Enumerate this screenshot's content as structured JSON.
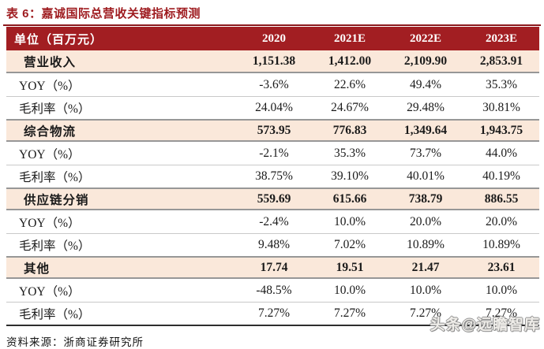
{
  "title": "表 6：嘉诚国际总营收关键指标预测",
  "colors": {
    "header_bg": "#A21E22",
    "section_row_bg": "#FAE8DA",
    "title_red": "#9E1B1F",
    "rule_red": "#8C181C"
  },
  "table": {
    "unit_header": "单位（百万元）",
    "columns": [
      "2020",
      "2021E",
      "2022E",
      "2023E"
    ],
    "rows": [
      {
        "label": "营业收入",
        "type": "section",
        "values": [
          "1,151.38",
          "1,412.00",
          "2,109.90",
          "2,853.91"
        ]
      },
      {
        "label": "YOY（%）",
        "type": "sub",
        "values": [
          "-3.6%",
          "22.6%",
          "49.4%",
          "35.3%"
        ]
      },
      {
        "label": "毛利率（%）",
        "type": "sub",
        "values": [
          "24.04%",
          "24.67%",
          "29.48%",
          "30.81%"
        ]
      },
      {
        "label": "综合物流",
        "type": "section",
        "values": [
          "573.95",
          "776.83",
          "1,349.64",
          "1,943.75"
        ]
      },
      {
        "label": "YOY（%）",
        "type": "sub",
        "values": [
          "-2.1%",
          "35.3%",
          "73.7%",
          "44.0%"
        ]
      },
      {
        "label": "毛利率（%）",
        "type": "sub",
        "values": [
          "38.75%",
          "39.10%",
          "40.01%",
          "40.19%"
        ]
      },
      {
        "label": "供应链分销",
        "type": "section",
        "values": [
          "559.69",
          "615.66",
          "738.79",
          "886.55"
        ]
      },
      {
        "label": "YOY（%）",
        "type": "sub",
        "values": [
          "-2.4%",
          "10.0%",
          "20.0%",
          "20.0%"
        ]
      },
      {
        "label": "毛利率（%）",
        "type": "sub",
        "values": [
          "9.48%",
          "7.02%",
          "10.89%",
          "10.89%"
        ]
      },
      {
        "label": "其他",
        "type": "section",
        "values": [
          "17.74",
          "19.51",
          "21.47",
          "23.61"
        ]
      },
      {
        "label": "YOY（%）",
        "type": "sub",
        "values": [
          "-48.5%",
          "10.0%",
          "10.0%",
          "10.0%"
        ]
      },
      {
        "label": "毛利率（%）",
        "type": "sub",
        "values": [
          "7.27%",
          "7.27%",
          "7.27%",
          "7.27%"
        ]
      }
    ]
  },
  "footer": {
    "source": "资料来源：浙商证券研究所"
  },
  "watermark": "头条@远瞻智库"
}
